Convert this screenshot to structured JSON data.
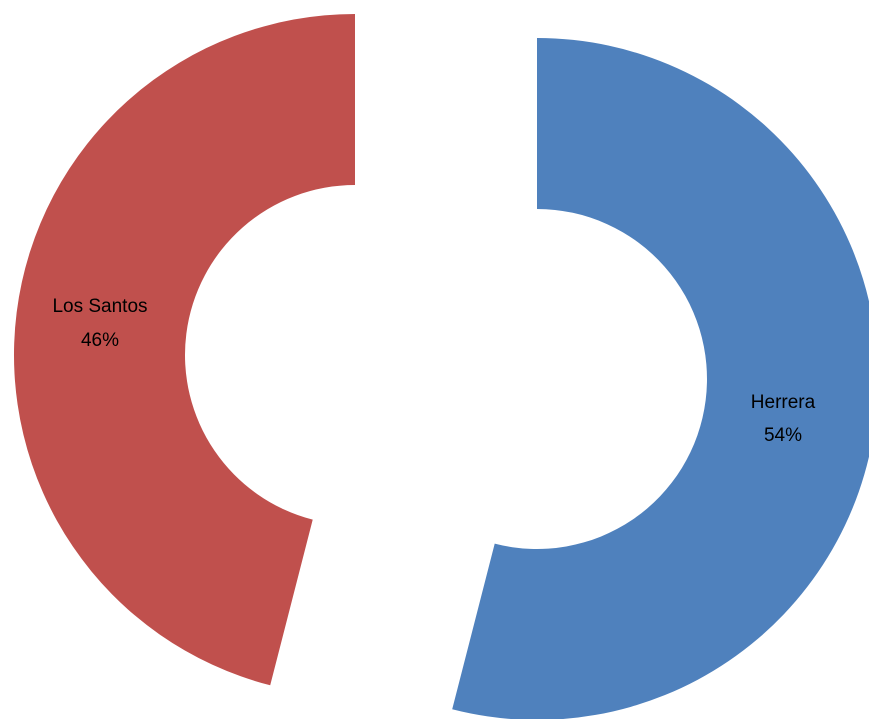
{
  "chart_data": {
    "type": "pie",
    "variant": "exploded-doughnut",
    "title": "",
    "slices": [
      {
        "name": "Herrera",
        "value": 54,
        "percent_label": "54%",
        "color": "#4F81BD"
      },
      {
        "name": "Los Santos",
        "value": 46,
        "percent_label": "46%",
        "color": "#C0504D"
      }
    ],
    "legend": "none",
    "start_angle": "top, clockwise"
  }
}
